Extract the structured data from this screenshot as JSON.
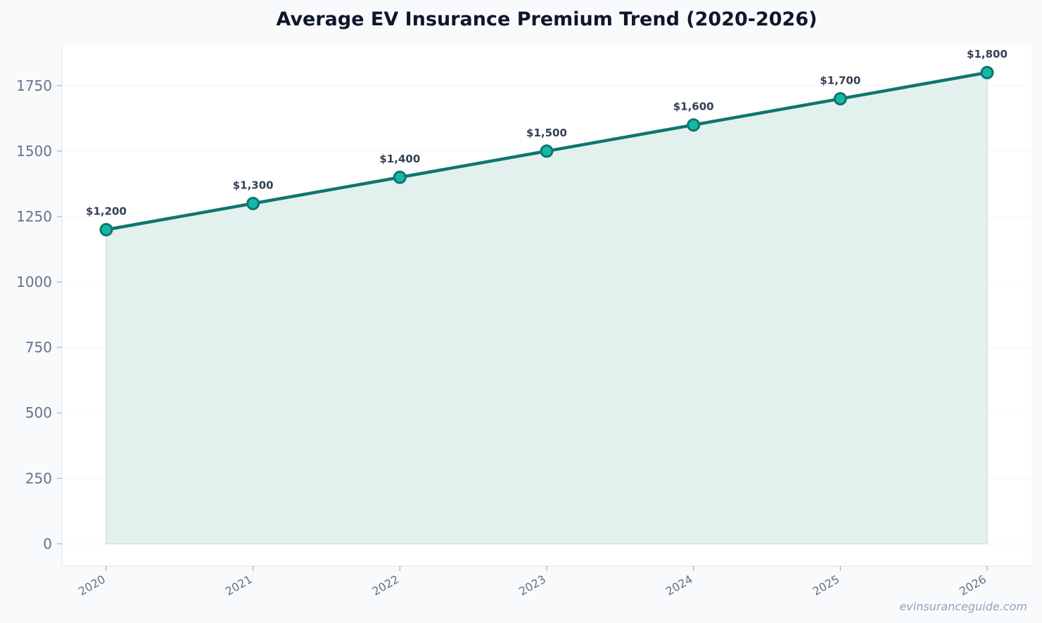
{
  "chart_data": {
    "type": "area",
    "title": "Average EV Insurance Premium Trend (2020-2026)",
    "xlabel": "",
    "ylabel": "",
    "categories": [
      "2020",
      "2021",
      "2022",
      "2023",
      "2024",
      "2025",
      "2026"
    ],
    "values": [
      1200,
      1300,
      1400,
      1500,
      1600,
      1700,
      1800
    ],
    "data_labels": [
      "$1,200",
      "$1,300",
      "$1,400",
      "$1,500",
      "$1,600",
      "$1,700",
      "$1,800"
    ],
    "yticks": [
      0,
      250,
      500,
      750,
      1000,
      1250,
      1500,
      1750
    ],
    "ylim": [
      -85,
      1900
    ],
    "grid": true,
    "legend": "none",
    "colors": {
      "line": "#0f766e",
      "marker_fill": "#14b8a6",
      "area_fill": "#e3f1ee",
      "area_edge": "#cfe5e0"
    }
  },
  "watermark": "evinsuranceguide.com"
}
